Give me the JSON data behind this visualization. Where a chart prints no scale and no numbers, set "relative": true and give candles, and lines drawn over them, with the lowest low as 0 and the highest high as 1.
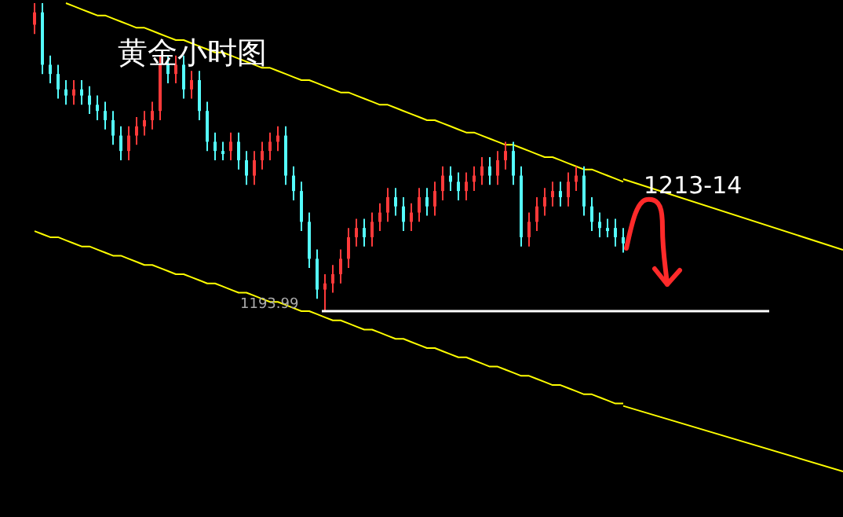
{
  "chart_data": {
    "type": "candlestick",
    "title": "黄金小时图",
    "relative": true,
    "categories": [
      null,
      null,
      null,
      null,
      null,
      null,
      null,
      null,
      null,
      null,
      null,
      null,
      null,
      null,
      null,
      null,
      null,
      null,
      null,
      null,
      null,
      null,
      null,
      null,
      null,
      null,
      null,
      null,
      null,
      null,
      null,
      null,
      null,
      null,
      null,
      null,
      null,
      null,
      null,
      null,
      null,
      null,
      null,
      null,
      null,
      null,
      null,
      null,
      null,
      null,
      null,
      null,
      null,
      null,
      null,
      null,
      null,
      null,
      null,
      null,
      null,
      null,
      null,
      null,
      null,
      null,
      null,
      null,
      null,
      null,
      null,
      null,
      null,
      null,
      null,
      null
    ],
    "ohlc": [
      [
        0.93,
        1,
        0.9,
        0.97
      ],
      [
        0.97,
        1,
        0.77,
        0.8
      ],
      [
        0.8,
        0.83,
        0.74,
        0.77
      ],
      [
        0.77,
        0.8,
        0.69,
        0.72
      ],
      [
        0.72,
        0.75,
        0.67,
        0.7
      ],
      [
        0.7,
        0.75,
        0.67,
        0.72
      ],
      [
        0.72,
        0.75,
        0.67,
        0.7
      ],
      [
        0.7,
        0.73,
        0.64,
        0.67
      ],
      [
        0.67,
        0.7,
        0.62,
        0.65
      ],
      [
        0.65,
        0.68,
        0.59,
        0.62
      ],
      [
        0.62,
        0.65,
        0.54,
        0.57
      ],
      [
        0.57,
        0.6,
        0.49,
        0.52
      ],
      [
        0.52,
        0.6,
        0.49,
        0.57
      ],
      [
        0.57,
        0.63,
        0.54,
        0.6
      ],
      [
        0.6,
        0.65,
        0.57,
        0.62
      ],
      [
        0.62,
        0.68,
        0.59,
        0.65
      ],
      [
        0.65,
        0.83,
        0.62,
        0.8
      ],
      [
        0.8,
        0.83,
        0.74,
        0.77
      ],
      [
        0.77,
        0.83,
        0.74,
        0.8
      ],
      [
        0.8,
        0.83,
        0.69,
        0.72
      ],
      [
        0.72,
        0.78,
        0.69,
        0.75
      ],
      [
        0.75,
        0.78,
        0.62,
        0.65
      ],
      [
        0.65,
        0.68,
        0.52,
        0.55
      ],
      [
        0.55,
        0.58,
        0.49,
        0.52
      ],
      [
        0.52,
        0.55,
        0.49,
        0.51
      ],
      [
        0.52,
        0.58,
        0.49,
        0.55
      ],
      [
        0.55,
        0.58,
        0.46,
        0.49
      ],
      [
        0.49,
        0.52,
        0.41,
        0.44
      ],
      [
        0.44,
        0.52,
        0.41,
        0.49
      ],
      [
        0.49,
        0.55,
        0.46,
        0.52
      ],
      [
        0.52,
        0.58,
        0.49,
        0.55
      ],
      [
        0.55,
        0.6,
        0.52,
        0.57
      ],
      [
        0.57,
        0.6,
        0.41,
        0.44
      ],
      [
        0.44,
        0.47,
        0.36,
        0.39
      ],
      [
        0.39,
        0.42,
        0.26,
        0.29
      ],
      [
        0.29,
        0.32,
        0.14,
        0.17
      ],
      [
        0.17,
        0.2,
        0.04,
        0.07
      ],
      [
        0.07,
        0.12,
        0,
        0.09
      ],
      [
        0.09,
        0.15,
        0.06,
        0.12
      ],
      [
        0.12,
        0.2,
        0.09,
        0.17
      ],
      [
        0.17,
        0.27,
        0.14,
        0.24
      ],
      [
        0.24,
        0.3,
        0.21,
        0.27
      ],
      [
        0.27,
        0.3,
        0.21,
        0.24
      ],
      [
        0.24,
        0.32,
        0.21,
        0.29
      ],
      [
        0.29,
        0.35,
        0.26,
        0.32
      ],
      [
        0.32,
        0.4,
        0.29,
        0.37
      ],
      [
        0.37,
        0.4,
        0.31,
        0.34
      ],
      [
        0.34,
        0.37,
        0.26,
        0.29
      ],
      [
        0.29,
        0.35,
        0.26,
        0.32
      ],
      [
        0.32,
        0.4,
        0.29,
        0.37
      ],
      [
        0.37,
        0.4,
        0.31,
        0.34
      ],
      [
        0.34,
        0.42,
        0.31,
        0.39
      ],
      [
        0.39,
        0.47,
        0.36,
        0.44
      ],
      [
        0.44,
        0.47,
        0.39,
        0.42
      ],
      [
        0.42,
        0.45,
        0.36,
        0.39
      ],
      [
        0.39,
        0.45,
        0.36,
        0.42
      ],
      [
        0.42,
        0.47,
        0.39,
        0.44
      ],
      [
        0.44,
        0.5,
        0.41,
        0.47
      ],
      [
        0.47,
        0.5,
        0.41,
        0.44
      ],
      [
        0.44,
        0.52,
        0.41,
        0.49
      ],
      [
        0.49,
        0.55,
        0.46,
        0.52
      ],
      [
        0.52,
        0.55,
        0.41,
        0.44
      ],
      [
        0.44,
        0.47,
        0.21,
        0.24
      ],
      [
        0.24,
        0.32,
        0.21,
        0.29
      ],
      [
        0.29,
        0.37,
        0.26,
        0.34
      ],
      [
        0.34,
        0.4,
        0.31,
        0.37
      ],
      [
        0.37,
        0.42,
        0.34,
        0.39
      ],
      [
        0.39,
        0.42,
        0.34,
        0.37
      ],
      [
        0.37,
        0.45,
        0.34,
        0.42
      ],
      [
        0.42,
        0.47,
        0.39,
        0.44
      ],
      [
        0.44,
        0.47,
        0.31,
        0.34
      ],
      [
        0.34,
        0.37,
        0.26,
        0.29
      ],
      [
        0.29,
        0.32,
        0.24,
        0.27
      ],
      [
        0.27,
        0.3,
        0.24,
        0.26
      ],
      [
        0.27,
        0.3,
        0.21,
        0.24
      ],
      [
        0.24,
        0.27,
        0.19,
        0.22
      ]
    ],
    "colors": [
      "#ff3a3a",
      "#54fcfc",
      "#54fcfc",
      "#54fcfc",
      "#54fcfc",
      "#ff3a3a",
      "#54fcfc",
      "#54fcfc",
      "#54fcfc",
      "#54fcfc",
      "#54fcfc",
      "#54fcfc",
      "#ff3a3a",
      "#ff3a3a",
      "#ff3a3a",
      "#ff3a3a",
      "#ff3a3a",
      "#54fcfc",
      "#ff3a3a",
      "#54fcfc",
      "#ff3a3a",
      "#54fcfc",
      "#54fcfc",
      "#54fcfc",
      "#54fcfc",
      "#ff3a3a",
      "#54fcfc",
      "#54fcfc",
      "#ff3a3a",
      "#ff3a3a",
      "#ff3a3a",
      "#ff3a3a",
      "#54fcfc",
      "#54fcfc",
      "#54fcfc",
      "#54fcfc",
      "#54fcfc",
      "#ff3a3a",
      "#ff3a3a",
      "#ff3a3a",
      "#ff3a3a",
      "#ff3a3a",
      "#54fcfc",
      "#ff3a3a",
      "#ff3a3a",
      "#ff3a3a",
      "#54fcfc",
      "#54fcfc",
      "#ff3a3a",
      "#ff3a3a",
      "#54fcfc",
      "#ff3a3a",
      "#ff3a3a",
      "#54fcfc",
      "#54fcfc",
      "#ff3a3a",
      "#ff3a3a",
      "#ff3a3a",
      "#54fcfc",
      "#ff3a3a",
      "#ff3a3a",
      "#54fcfc",
      "#54fcfc",
      "#ff3a3a",
      "#ff3a3a",
      "#ff3a3a",
      "#ff3a3a",
      "#54fcfc",
      "#ff3a3a",
      "#ff3a3a",
      "#54fcfc",
      "#54fcfc",
      "#54fcfc",
      "#54fcfc",
      "#54fcfc",
      "#54fcfc"
    ],
    "series": [
      {
        "type": "line",
        "color": "#ffff00",
        "values": [
          null,
          null,
          null,
          null,
          1,
          0.99,
          0.98,
          0.97,
          0.96,
          0.96,
          0.95,
          0.94,
          0.93,
          0.92,
          0.92,
          0.91,
          0.9,
          0.89,
          0.88,
          0.88,
          0.87,
          0.86,
          0.85,
          0.84,
          0.84,
          0.83,
          0.82,
          0.81,
          0.8,
          0.79,
          0.79,
          0.78,
          0.77,
          0.76,
          0.75,
          0.75,
          0.74,
          0.73,
          0.72,
          0.71,
          0.71,
          0.7,
          0.69,
          0.68,
          0.67,
          0.67,
          0.66,
          0.65,
          0.64,
          0.63,
          0.62,
          0.62,
          0.61,
          0.6,
          0.59,
          0.58,
          0.58,
          0.57,
          0.56,
          0.55,
          0.54,
          0.54,
          0.53,
          0.52,
          0.51,
          0.5,
          0.5,
          0.49,
          0.48,
          0.47,
          0.46,
          0.46,
          0.45,
          0.44,
          0.43,
          0.42
        ]
      },
      {
        "type": "line",
        "color": "#ffff00",
        "values": [
          0.26,
          0.25,
          0.24,
          0.24,
          0.23,
          0.22,
          0.21,
          0.21,
          0.2,
          0.19,
          0.18,
          0.18,
          0.17,
          0.16,
          0.15,
          0.15,
          0.14,
          0.13,
          0.12,
          0.12,
          0.11,
          0.1,
          0.09,
          0.09,
          0.08,
          0.07,
          0.06,
          0.06,
          0.05,
          0.04,
          0.03,
          0.03,
          0.02,
          0.01,
          0,
          0,
          -0.01,
          -0.02,
          -0.03,
          -0.03,
          -0.04,
          -0.05,
          -0.06,
          -0.06,
          -0.07,
          -0.08,
          -0.09,
          -0.09,
          -0.1,
          -0.11,
          -0.12,
          -0.12,
          -0.13,
          -0.14,
          -0.15,
          -0.15,
          -0.16,
          -0.17,
          -0.18,
          -0.18,
          -0.19,
          -0.2,
          -0.21,
          -0.21,
          -0.22,
          -0.23,
          -0.24,
          -0.24,
          -0.25,
          -0.26,
          -0.27,
          -0.27,
          -0.28,
          -0.29,
          -0.3,
          -0.3
        ]
      }
    ],
    "ref_lines": [
      {
        "axis": "y",
        "value": 0,
        "color": "#ffffff"
      }
    ],
    "annotations": [
      "1213-14",
      "1193.99"
    ]
  }
}
